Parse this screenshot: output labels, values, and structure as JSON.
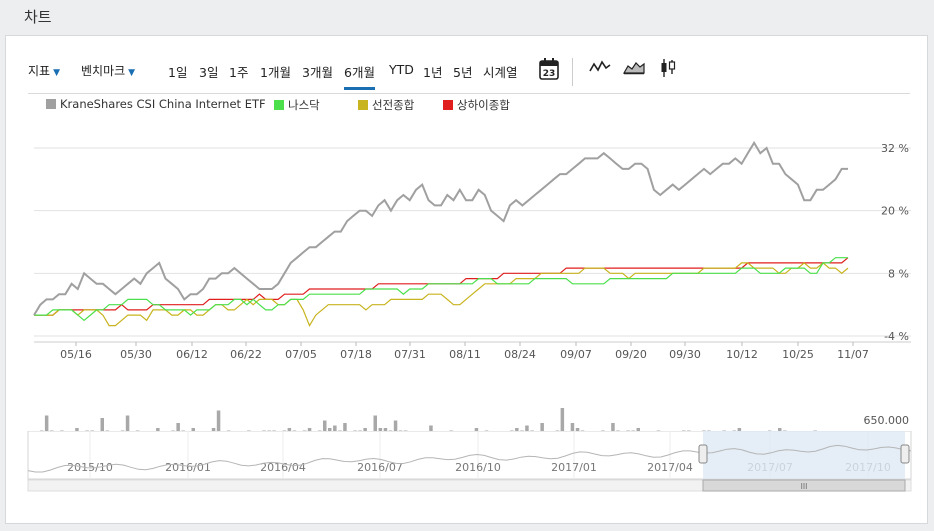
{
  "title": "차트",
  "toolbar": {
    "indicators": "지표",
    "benchmark": "벤치마크",
    "periods": [
      "1일",
      "3일",
      "1주",
      "1개월",
      "3개월",
      "6개월",
      "YTD",
      "1년",
      "5년",
      "시계열"
    ],
    "active_period": "6개월",
    "calendar_day": "23"
  },
  "colors": {
    "etf": "#a0a0a0",
    "nasdaq": "#4be04b",
    "shenzhen": "#c8b41e",
    "shanghai": "#e01e1e",
    "accent": "#1a6fb3"
  },
  "icons": [
    "line-chart-icon",
    "area-chart-icon",
    "candlestick-icon",
    "calendar-icon"
  ],
  "legend": [
    "KraneShares CSI China Internet ETF",
    "나스닥",
    "선전종합",
    "상하이종합"
  ],
  "chart_data": {
    "type": "line",
    "x_ticks": [
      "05/16",
      "05/30",
      "06/12",
      "06/22",
      "07/05",
      "07/18",
      "07/31",
      "08/11",
      "08/24",
      "09/07",
      "09/20",
      "09/30",
      "10/12",
      "10/25",
      "11/07"
    ],
    "y_ticks": [
      "32 %",
      "20 %",
      "8 %",
      "-4 %"
    ],
    "ylim": [
      -4,
      32
    ],
    "series": [
      {
        "name": "KraneShares CSI China Internet ETF",
        "values": [
          0,
          2,
          3,
          3,
          4,
          4,
          6,
          5,
          8,
          7,
          6,
          6,
          5,
          4,
          5,
          6,
          7,
          6,
          8,
          9,
          10,
          7,
          6,
          5,
          3,
          4,
          4,
          5,
          7,
          7,
          8,
          8,
          9,
          8,
          7,
          6,
          5,
          5,
          5,
          6,
          8,
          10,
          11,
          12,
          13,
          13,
          14,
          15,
          16,
          16,
          18,
          19,
          20,
          20,
          19,
          21,
          22,
          20,
          22,
          23,
          22,
          24,
          25,
          22,
          21,
          21,
          23,
          22,
          24,
          22,
          22,
          24,
          23,
          20,
          19,
          18,
          21,
          22,
          21,
          22,
          23,
          24,
          25,
          26,
          27,
          27,
          28,
          29,
          30,
          30,
          30,
          31,
          30,
          29,
          28,
          28,
          29,
          29,
          28,
          24,
          23,
          24,
          25,
          24,
          25,
          26,
          27,
          28,
          27,
          28,
          29,
          29,
          30,
          29,
          31,
          33,
          31,
          32,
          29,
          29,
          27,
          26,
          25,
          22,
          22,
          24,
          24,
          25,
          26,
          28,
          28
        ]
      },
      {
        "name": "나스닥",
        "values": [
          0,
          0,
          0,
          1,
          1,
          1,
          1,
          0,
          -1,
          0,
          1,
          1,
          2,
          2,
          2,
          3,
          3,
          3,
          3,
          2,
          2,
          1,
          1,
          1,
          1,
          0,
          1,
          1,
          1,
          2,
          2,
          2,
          3,
          3,
          2,
          3,
          2,
          1,
          1,
          2,
          2,
          3,
          3,
          3,
          4,
          4,
          4,
          4,
          4,
          4,
          4,
          4,
          4,
          5,
          5,
          5,
          5,
          5,
          5,
          4,
          5,
          5,
          5,
          6,
          6,
          6,
          6,
          6,
          6,
          6,
          6,
          7,
          7,
          7,
          6,
          6,
          6,
          6,
          6,
          6,
          7,
          7,
          7,
          7,
          7,
          7,
          6,
          6,
          6,
          6,
          6,
          6,
          7,
          7,
          7,
          7,
          7,
          7,
          7,
          7,
          7,
          7,
          8,
          8,
          8,
          8,
          8,
          8,
          8,
          8,
          8,
          8,
          8,
          9,
          9,
          9,
          8,
          8,
          8,
          8,
          9,
          9,
          9,
          9,
          8,
          8,
          10,
          10,
          11,
          11,
          11
        ]
      },
      {
        "name": "선전종합",
        "values": [
          0,
          0,
          0,
          0,
          1,
          1,
          1,
          0,
          1,
          1,
          1,
          0,
          -2,
          -2,
          -1,
          0,
          0,
          0,
          -1,
          1,
          1,
          1,
          0,
          0,
          1,
          1,
          0,
          0,
          1,
          2,
          2,
          1,
          1,
          2,
          3,
          2,
          3,
          3,
          3,
          2,
          2,
          3,
          3,
          1,
          -2,
          0,
          1,
          2,
          2,
          2,
          2,
          2,
          2,
          1,
          2,
          2,
          2,
          3,
          3,
          3,
          3,
          3,
          3,
          4,
          4,
          4,
          3,
          2,
          2,
          3,
          4,
          5,
          6,
          6,
          6,
          6,
          6,
          7,
          7,
          7,
          7,
          8,
          8,
          8,
          8,
          8,
          8,
          8,
          9,
          9,
          9,
          9,
          8,
          8,
          8,
          7,
          8,
          8,
          8,
          8,
          8,
          8,
          8,
          8,
          8,
          8,
          8,
          9,
          9,
          9,
          9,
          9,
          9,
          10,
          10,
          9,
          9,
          9,
          9,
          8,
          8,
          9,
          9,
          10,
          9,
          9,
          10,
          9,
          9,
          8,
          9
        ]
      },
      {
        "name": "상하이종합",
        "values": [
          0,
          0,
          0,
          0,
          1,
          1,
          1,
          1,
          1,
          1,
          1,
          1,
          1,
          1,
          2,
          1,
          1,
          1,
          1,
          2,
          2,
          2,
          2,
          2,
          2,
          2,
          2,
          2,
          3,
          3,
          3,
          3,
          3,
          3,
          3,
          3,
          4,
          3,
          3,
          3,
          4,
          4,
          4,
          4,
          5,
          5,
          5,
          5,
          5,
          5,
          5,
          5,
          5,
          5,
          5,
          6,
          6,
          6,
          6,
          6,
          6,
          6,
          6,
          6,
          6,
          6,
          6,
          6,
          6,
          7,
          7,
          7,
          7,
          7,
          7,
          8,
          8,
          8,
          8,
          8,
          8,
          8,
          8,
          8,
          8,
          9,
          9,
          9,
          9,
          9,
          9,
          9,
          9,
          9,
          9,
          9,
          9,
          9,
          9,
          9,
          9,
          9,
          9,
          9,
          9,
          9,
          9,
          9,
          9,
          9,
          9,
          9,
          9,
          9,
          10,
          10,
          10,
          10,
          10,
          10,
          10,
          10,
          10,
          10,
          10,
          10,
          10,
          10,
          10,
          10,
          11
        ]
      }
    ],
    "volume": {
      "ticks": [
        "650.000",
        "0"
      ],
      "values": [
        0.4,
        0.55,
        0.85,
        0.55,
        0.35,
        0.55,
        0.45,
        0.4,
        0.6,
        0.45,
        0.55,
        0.55,
        0.5,
        0.8,
        0.55,
        0.45,
        0.45,
        0.55,
        0.85,
        0.5,
        0.55,
        0.5,
        0.5,
        0.45,
        0.6,
        0.5,
        0.5,
        0.55,
        0.7,
        0.55,
        0.5,
        0.6,
        0.45,
        0.5,
        0.5,
        0.6,
        0.95,
        0.5,
        0.55,
        0.5,
        0.4,
        0.35,
        0.55,
        0.5,
        0.5,
        0.55,
        0.55,
        0.55,
        0.5,
        0.55,
        0.6,
        0.55,
        0.45,
        0.55,
        0.6,
        0.5,
        0.55,
        0.75,
        0.6,
        0.65,
        0.55,
        0.7,
        0.5,
        0.55,
        0.55,
        0.6,
        0.5,
        0.85,
        0.6,
        0.6,
        0.55,
        0.75,
        0.55,
        0.55,
        0.45,
        0.45,
        0.4,
        0.5,
        0.65,
        0.45,
        0.5,
        0.45,
        0.55,
        0.45,
        0.45,
        0.5,
        0.5,
        0.6,
        0.5,
        0.55,
        0.45,
        0.5,
        0.45,
        0.5,
        0.55,
        0.6,
        0.55,
        0.65,
        0.55,
        0.5,
        0.7,
        0.5,
        0.5,
        0.55,
        1.0,
        0.5,
        0.7,
        0.6,
        0.55,
        0.5,
        0.45,
        0.45,
        0.55,
        0.5,
        0.7,
        0.55,
        0.5,
        0.55,
        0.55,
        0.6,
        0.5,
        0.45,
        0.5,
        0.55,
        0.5,
        0.45,
        0.45,
        0.5,
        0.55,
        0.55,
        0.45,
        0.5,
        0.55,
        0.55,
        0.45,
        0.5,
        0.55,
        0.5,
        0.55,
        0.6,
        0.45,
        0.5,
        0.45,
        0.45,
        0.45,
        0.55,
        0.5,
        0.6,
        0.55,
        0.5,
        0.45,
        0.5,
        0.45,
        0.5,
        0.55,
        0.5,
        0.5,
        0.45,
        0.45,
        0.5,
        0.5
      ]
    }
  },
  "navigator": {
    "ticks": [
      "2015/10",
      "2016/01",
      "2016/04",
      "2016/07",
      "2016/10",
      "2017/01",
      "2017/04",
      "2017/07",
      "2017/10"
    ],
    "handle": "lll"
  }
}
